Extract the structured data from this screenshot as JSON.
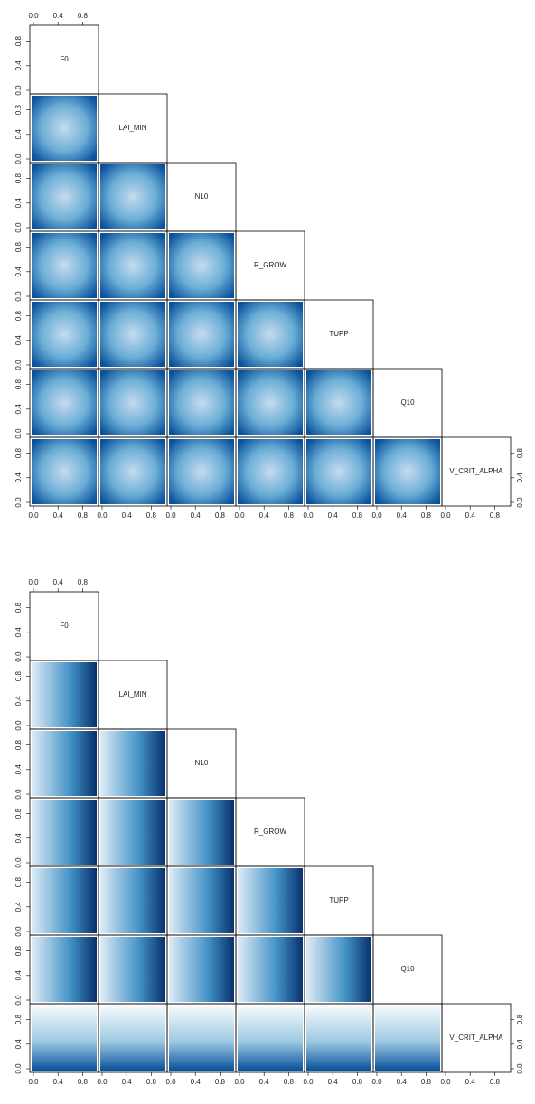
{
  "chart_data": [
    {
      "type": "pairs",
      "variables": [
        "F0",
        "LAI_MIN",
        "NL0",
        "R_GROW",
        "TUPP",
        "Q10",
        "V_CRIT_ALPHA"
      ],
      "xlim": [
        0,
        1
      ],
      "ylim": [
        0,
        1
      ],
      "ticks": [
        {
          "value": 0,
          "label": "0.0"
        },
        0.4,
        0.8
      ]
    },
    {
      "type": "pairs",
      "variables": [
        "F0",
        "LAI_MIN",
        "NL0",
        "R_GROW",
        "TUPP",
        "Q10",
        "V_CRIT_ALPHA"
      ],
      "xlim": [
        0,
        1
      ],
      "ylim": [
        0,
        1
      ],
      "ticks": [
        {
          "value": 0,
          "label": "0.0"
        },
        0.4,
        0.8
      ]
    }
  ]
}
